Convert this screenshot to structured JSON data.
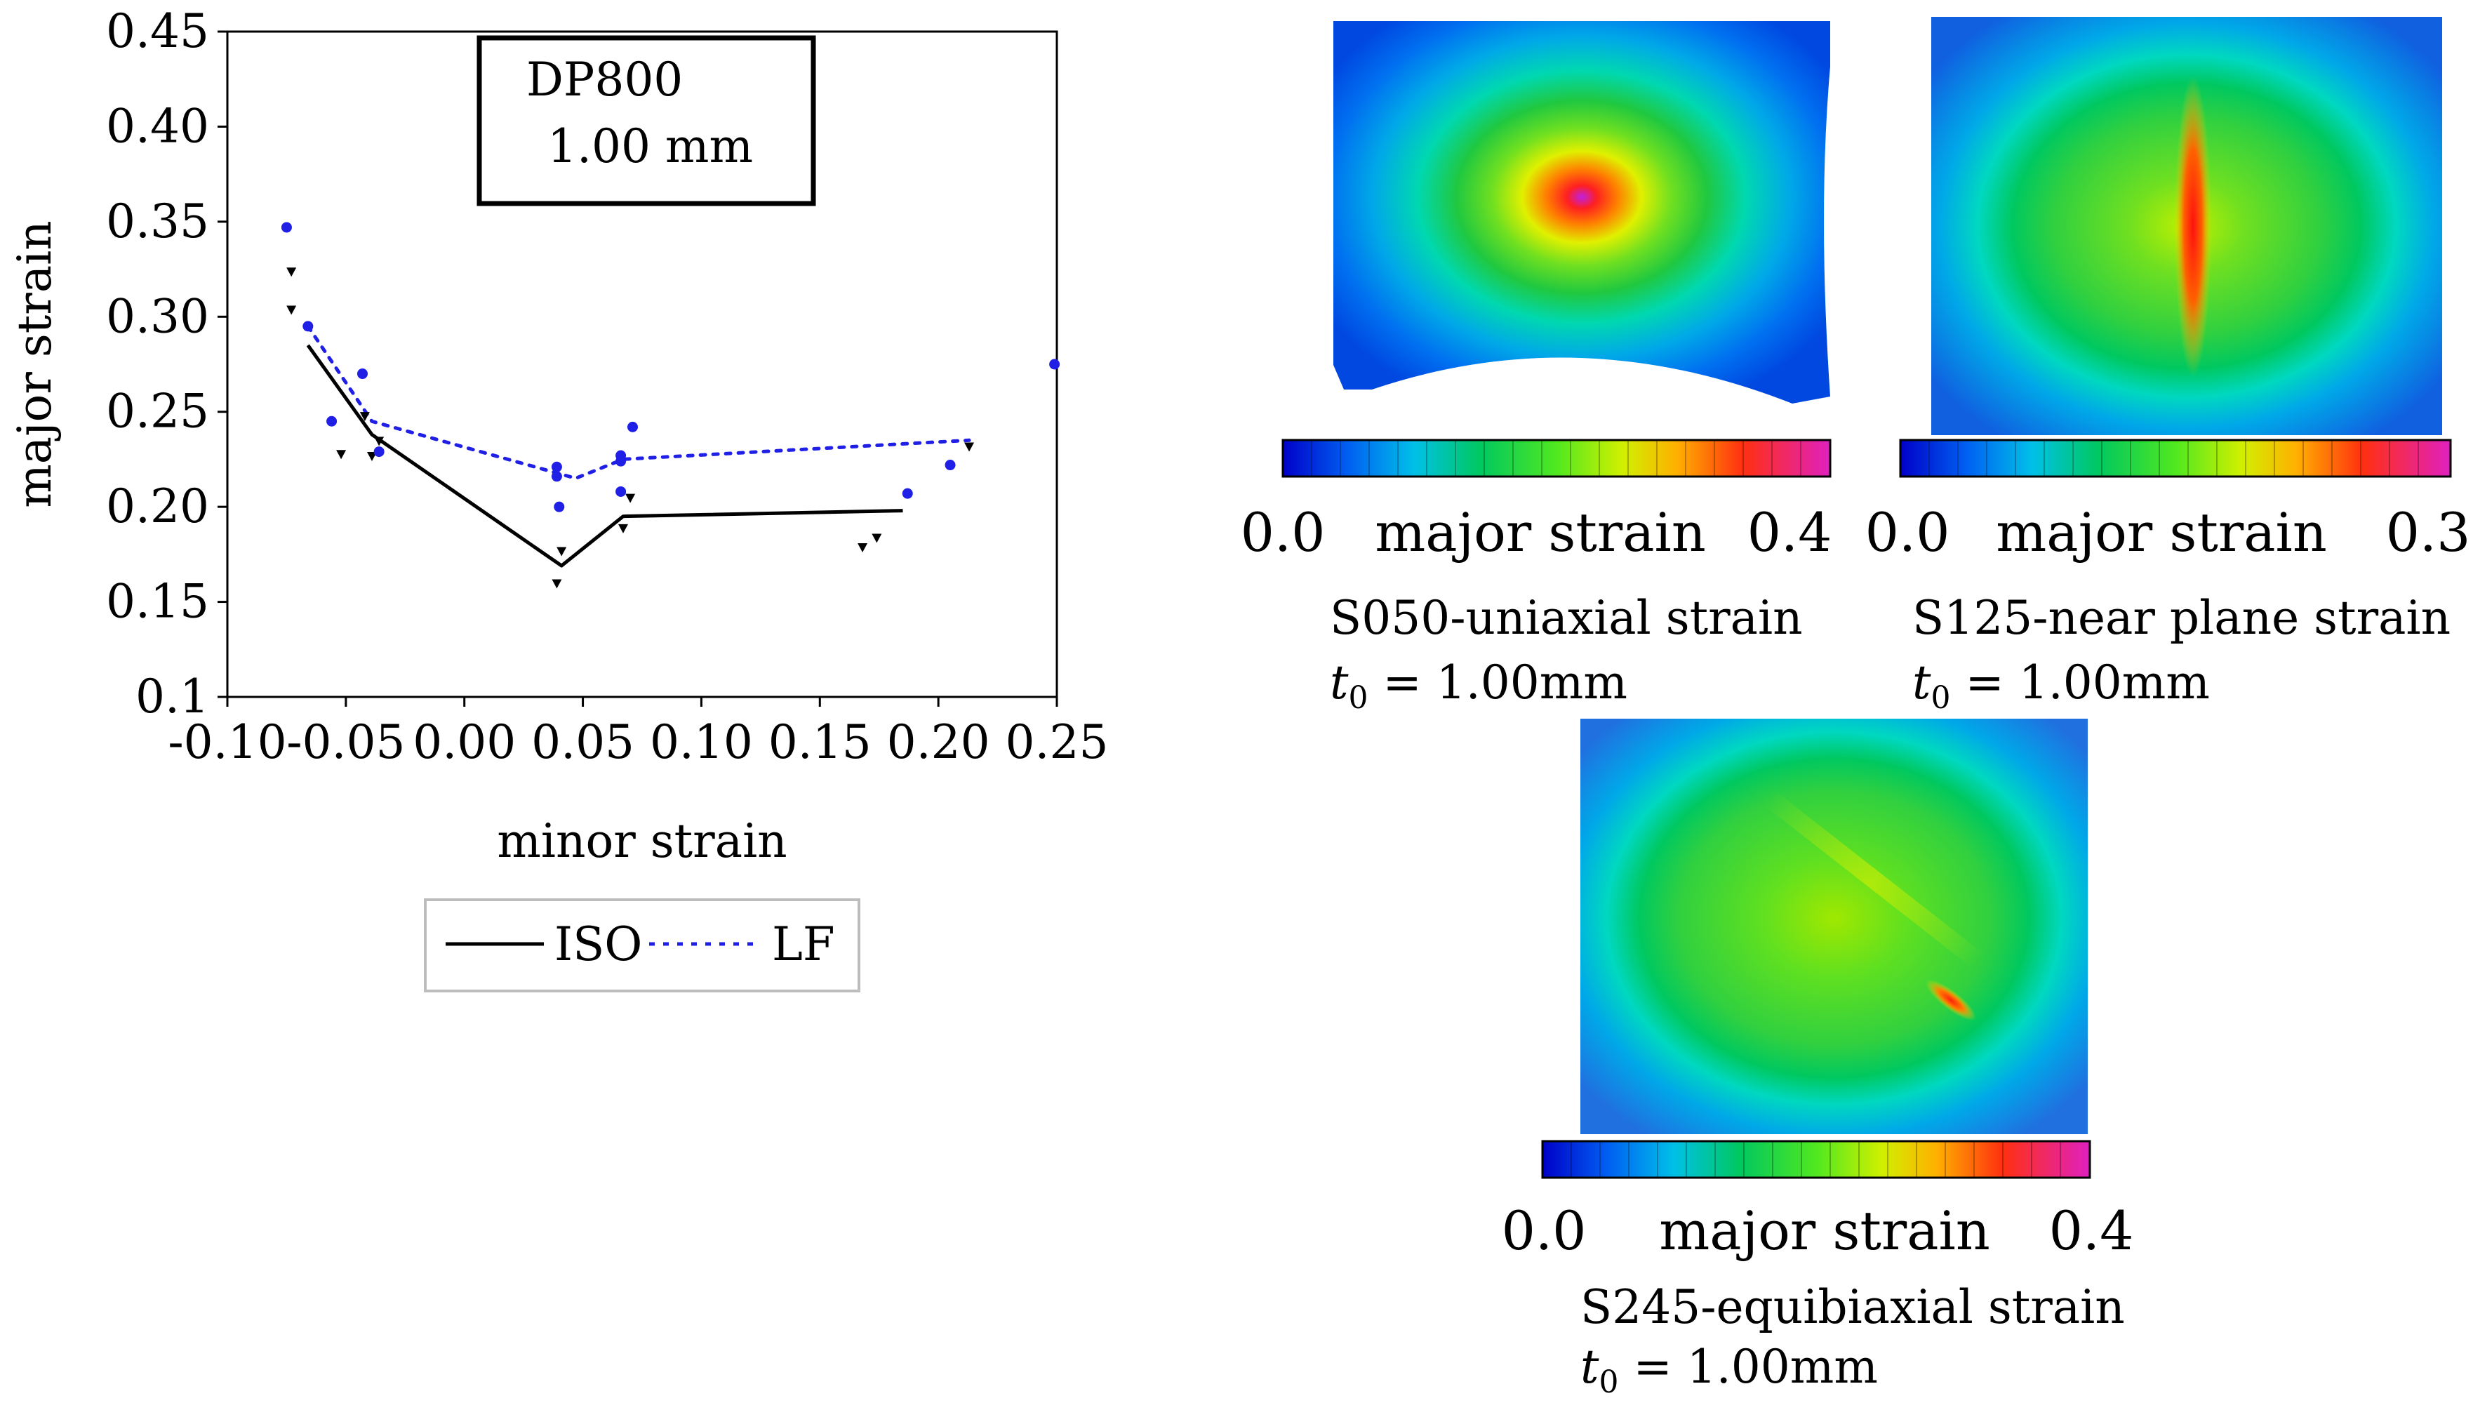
{
  "chart_data": {
    "type": "line",
    "title": "",
    "annotation_lines": [
      "DP800",
      "1.00 mm"
    ],
    "xlabel": "minor strain",
    "ylabel": "major strain",
    "xlim": [
      -0.1,
      0.25
    ],
    "ylim": [
      0.1,
      0.45
    ],
    "x_ticks": [
      -0.1,
      -0.05,
      0.0,
      0.05,
      0.1,
      0.15,
      0.2,
      0.25
    ],
    "x_tick_labels": [
      "-0.10",
      "-0.05",
      "0.00",
      "0.05",
      "0.10",
      "0.15",
      "0.20",
      "0.25"
    ],
    "y_ticks": [
      0.1,
      0.15,
      0.2,
      0.25,
      0.3,
      0.35,
      0.4,
      0.45
    ],
    "y_tick_labels": [
      "0.1",
      "0.15",
      "0.20",
      "0.25",
      "0.30",
      "0.35",
      "0.40",
      "0.45"
    ],
    "grid": false,
    "legend_position": "bottom",
    "series": [
      {
        "name": "ISO",
        "style": "solid",
        "color": "#000000",
        "line": [
          {
            "x": -0.066,
            "y": 0.285
          },
          {
            "x": -0.039,
            "y": 0.238
          },
          {
            "x": 0.041,
            "y": 0.169
          },
          {
            "x": 0.067,
            "y": 0.195
          },
          {
            "x": 0.185,
            "y": 0.198
          }
        ],
        "points": [
          {
            "x": -0.073,
            "y": 0.324
          },
          {
            "x": -0.073,
            "y": 0.304
          },
          {
            "x": -0.052,
            "y": 0.228
          },
          {
            "x": -0.042,
            "y": 0.248
          },
          {
            "x": -0.039,
            "y": 0.227
          },
          {
            "x": -0.036,
            "y": 0.235
          },
          {
            "x": 0.039,
            "y": 0.16
          },
          {
            "x": 0.041,
            "y": 0.177
          },
          {
            "x": 0.067,
            "y": 0.189
          },
          {
            "x": 0.07,
            "y": 0.205
          },
          {
            "x": 0.168,
            "y": 0.179
          },
          {
            "x": 0.174,
            "y": 0.184
          },
          {
            "x": 0.213,
            "y": 0.232
          }
        ]
      },
      {
        "name": "LF",
        "style": "dotted",
        "color": "#1f1fe6",
        "line": [
          {
            "x": -0.066,
            "y": 0.295
          },
          {
            "x": -0.039,
            "y": 0.245
          },
          {
            "x": 0.047,
            "y": 0.215
          },
          {
            "x": 0.067,
            "y": 0.225
          },
          {
            "x": 0.213,
            "y": 0.235
          }
        ],
        "points": [
          {
            "x": -0.075,
            "y": 0.347
          },
          {
            "x": -0.066,
            "y": 0.295
          },
          {
            "x": -0.056,
            "y": 0.245
          },
          {
            "x": -0.043,
            "y": 0.27
          },
          {
            "x": -0.036,
            "y": 0.229
          },
          {
            "x": 0.039,
            "y": 0.221
          },
          {
            "x": 0.039,
            "y": 0.216
          },
          {
            "x": 0.04,
            "y": 0.2
          },
          {
            "x": 0.066,
            "y": 0.227
          },
          {
            "x": 0.066,
            "y": 0.224
          },
          {
            "x": 0.066,
            "y": 0.208
          },
          {
            "x": 0.071,
            "y": 0.242
          },
          {
            "x": 0.187,
            "y": 0.207
          },
          {
            "x": 0.205,
            "y": 0.222
          },
          {
            "x": 0.249,
            "y": 0.275
          }
        ]
      }
    ]
  },
  "panels": [
    {
      "id": "S050",
      "scale_min": "0.0",
      "scale_label": "major strain",
      "scale_max": "0.4",
      "caption": "S050-uniaxial strain",
      "thickness_symbol": "t",
      "thickness_sub": "0",
      "thickness_value": " = 1.00mm"
    },
    {
      "id": "S125",
      "scale_min": "0.0",
      "scale_label": "major strain",
      "scale_max": "0.3",
      "caption": "S125-near plane strain",
      "thickness_symbol": "t",
      "thickness_sub": "0",
      "thickness_value": " = 1.00mm"
    },
    {
      "id": "S245",
      "scale_min": "0.0",
      "scale_label": "major strain",
      "scale_max": "0.4",
      "caption": "S245-equibiaxial strain",
      "thickness_symbol": "t",
      "thickness_sub": "0",
      "thickness_value": " = 1.00mm"
    }
  ],
  "colorbar_colors": [
    "#0000c8",
    "#0030e6",
    "#0060f2",
    "#0090f0",
    "#00c0e8",
    "#00e0c8",
    "#00d890",
    "#00c860",
    "#20d840",
    "#50e820",
    "#90f000",
    "#d0f000",
    "#ffe000",
    "#ffb000",
    "#ff8000",
    "#ff5000",
    "#ff2020",
    "#f01060",
    "#e020c0"
  ]
}
